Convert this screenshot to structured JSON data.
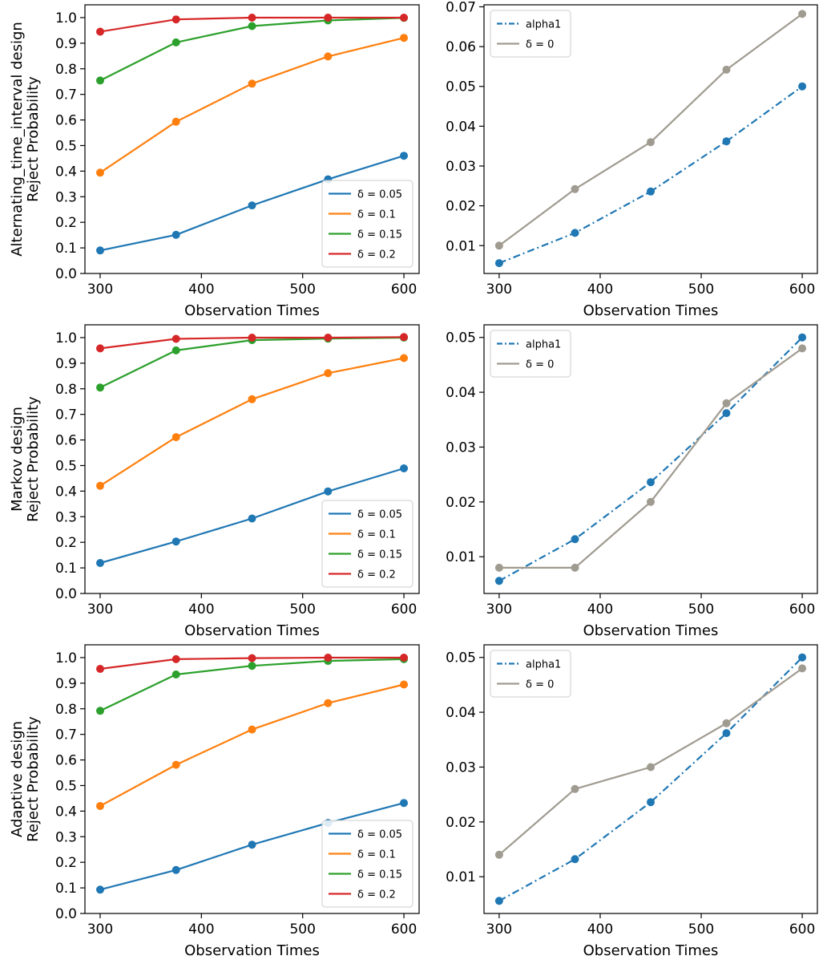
{
  "chart_data": [
    {
      "type": "line",
      "x": [
        300,
        375,
        450,
        525,
        600
      ],
      "xlabel": "Observation Times",
      "ylabel": "Alternating_time_interval design\nReject Probability",
      "xlim": [
        285,
        615
      ],
      "ylim": [
        0,
        1.05
      ],
      "xticks": [
        300,
        400,
        500,
        600
      ],
      "yticks": [
        0.0,
        0.1,
        0.2,
        0.3,
        0.4,
        0.5,
        0.6,
        0.7,
        0.8,
        0.9,
        1.0
      ],
      "ytick_labels": [
        "0.0",
        "0.1",
        "0.2",
        "0.3",
        "0.4",
        "0.5",
        "0.6",
        "0.7",
        "0.8",
        "0.9",
        "1.0"
      ],
      "legend": "lower-right",
      "series": [
        {
          "name": "δ = 0.05",
          "color": "#1f77b4",
          "style": "solid",
          "values": [
            0.09,
            0.151,
            0.266,
            0.368,
            0.46
          ]
        },
        {
          "name": "δ = 0.1",
          "color": "#ff7f0e",
          "style": "solid",
          "values": [
            0.394,
            0.593,
            0.742,
            0.848,
            0.921
          ]
        },
        {
          "name": "δ = 0.15",
          "color": "#2ca02c",
          "style": "solid",
          "values": [
            0.754,
            0.903,
            0.967,
            0.989,
            0.999
          ]
        },
        {
          "name": "δ = 0.2",
          "color": "#d62728",
          "style": "solid",
          "values": [
            0.945,
            0.993,
            1.0,
            1.0,
            1.0
          ]
        }
      ]
    },
    {
      "type": "line",
      "x": [
        300,
        375,
        450,
        525,
        600
      ],
      "xlabel": "Observation Times",
      "ylabel": "",
      "xlim": [
        285,
        615
      ],
      "ylim": [
        0.003,
        0.0705
      ],
      "xticks": [
        300,
        400,
        500,
        600
      ],
      "yticks": [
        0.01,
        0.02,
        0.03,
        0.04,
        0.05,
        0.06,
        0.07
      ],
      "ytick_labels": [
        "0.01",
        "0.02",
        "0.03",
        "0.04",
        "0.05",
        "0.06",
        "0.07"
      ],
      "legend": "top-left",
      "series": [
        {
          "name": "alpha1",
          "color": "#1f77b4",
          "style": "dashdot",
          "values": [
            0.0056,
            0.0132,
            0.0236,
            0.0362,
            0.05
          ]
        },
        {
          "name": "δ = 0",
          "color": "#a09b90",
          "style": "solid",
          "values": [
            0.01,
            0.0242,
            0.036,
            0.0542,
            0.0682
          ]
        }
      ]
    },
    {
      "type": "line",
      "x": [
        300,
        375,
        450,
        525,
        600
      ],
      "xlabel": "Observation Times",
      "ylabel": "Markov design\nReject Probability",
      "xlim": [
        285,
        615
      ],
      "ylim": [
        0,
        1.05
      ],
      "xticks": [
        300,
        400,
        500,
        600
      ],
      "yticks": [
        0.0,
        0.1,
        0.2,
        0.3,
        0.4,
        0.5,
        0.6,
        0.7,
        0.8,
        0.9,
        1.0
      ],
      "ytick_labels": [
        "0.0",
        "0.1",
        "0.2",
        "0.3",
        "0.4",
        "0.5",
        "0.6",
        "0.7",
        "0.8",
        "0.9",
        "1.0"
      ],
      "legend": "lower-right",
      "series": [
        {
          "name": "δ = 0.05",
          "color": "#1f77b4",
          "style": "solid",
          "values": [
            0.119,
            0.203,
            0.293,
            0.399,
            0.489
          ]
        },
        {
          "name": "δ = 0.1",
          "color": "#ff7f0e",
          "style": "solid",
          "values": [
            0.421,
            0.611,
            0.759,
            0.861,
            0.92
          ]
        },
        {
          "name": "δ = 0.15",
          "color": "#2ca02c",
          "style": "solid",
          "values": [
            0.805,
            0.95,
            0.99,
            0.996,
            1.0
          ]
        },
        {
          "name": "δ = 0.2",
          "color": "#d62728",
          "style": "solid",
          "values": [
            0.958,
            0.995,
            1.0,
            1.0,
            1.002
          ]
        }
      ]
    },
    {
      "type": "line",
      "x": [
        300,
        375,
        450,
        525,
        600
      ],
      "xlabel": "Observation Times",
      "ylabel": "",
      "xlim": [
        285,
        615
      ],
      "ylim": [
        0.0033,
        0.0523
      ],
      "xticks": [
        300,
        400,
        500,
        600
      ],
      "yticks": [
        0.01,
        0.02,
        0.03,
        0.04,
        0.05
      ],
      "ytick_labels": [
        "0.01",
        "0.02",
        "0.03",
        "0.04",
        "0.05"
      ],
      "legend": "top-left",
      "series": [
        {
          "name": "alpha1",
          "color": "#1f77b4",
          "style": "dashdot",
          "values": [
            0.0056,
            0.0132,
            0.0236,
            0.0362,
            0.05
          ]
        },
        {
          "name": "δ = 0",
          "color": "#a09b90",
          "style": "solid",
          "values": [
            0.008,
            0.008,
            0.02,
            0.038,
            0.048
          ]
        }
      ]
    },
    {
      "type": "line",
      "x": [
        300,
        375,
        450,
        525,
        600
      ],
      "xlabel": "Observation Times",
      "ylabel": "Adaptive design\nReject Probability",
      "xlim": [
        285,
        615
      ],
      "ylim": [
        0,
        1.05
      ],
      "xticks": [
        300,
        400,
        500,
        600
      ],
      "yticks": [
        0.0,
        0.1,
        0.2,
        0.3,
        0.4,
        0.5,
        0.6,
        0.7,
        0.8,
        0.9,
        1.0
      ],
      "ytick_labels": [
        "0.0",
        "0.1",
        "0.2",
        "0.3",
        "0.4",
        "0.5",
        "0.6",
        "0.7",
        "0.8",
        "0.9",
        "1.0"
      ],
      "legend": "lower-right",
      "series": [
        {
          "name": "δ = 0.05",
          "color": "#1f77b4",
          "style": "solid",
          "values": [
            0.093,
            0.17,
            0.269,
            0.354,
            0.432
          ]
        },
        {
          "name": "δ = 0.1",
          "color": "#ff7f0e",
          "style": "solid",
          "values": [
            0.42,
            0.581,
            0.719,
            0.822,
            0.895
          ]
        },
        {
          "name": "δ = 0.15",
          "color": "#2ca02c",
          "style": "solid",
          "values": [
            0.792,
            0.934,
            0.968,
            0.987,
            0.994
          ]
        },
        {
          "name": "δ = 0.2",
          "color": "#d62728",
          "style": "solid",
          "values": [
            0.956,
            0.994,
            0.998,
            1.0,
            1.0
          ]
        }
      ]
    },
    {
      "type": "line",
      "x": [
        300,
        375,
        450,
        525,
        600
      ],
      "xlabel": "Observation Times",
      "ylabel": "",
      "xlim": [
        285,
        615
      ],
      "ylim": [
        0.0033,
        0.0523
      ],
      "xticks": [
        300,
        400,
        500,
        600
      ],
      "yticks": [
        0.01,
        0.02,
        0.03,
        0.04,
        0.05
      ],
      "ytick_labels": [
        "0.01",
        "0.02",
        "0.03",
        "0.04",
        "0.05"
      ],
      "legend": "top-left",
      "series": [
        {
          "name": "alpha1",
          "color": "#1f77b4",
          "style": "dashdot",
          "values": [
            0.0056,
            0.0132,
            0.0236,
            0.0362,
            0.05
          ]
        },
        {
          "name": "δ = 0",
          "color": "#a09b90",
          "style": "solid",
          "values": [
            0.014,
            0.026,
            0.03,
            0.038,
            0.048
          ]
        }
      ]
    }
  ]
}
